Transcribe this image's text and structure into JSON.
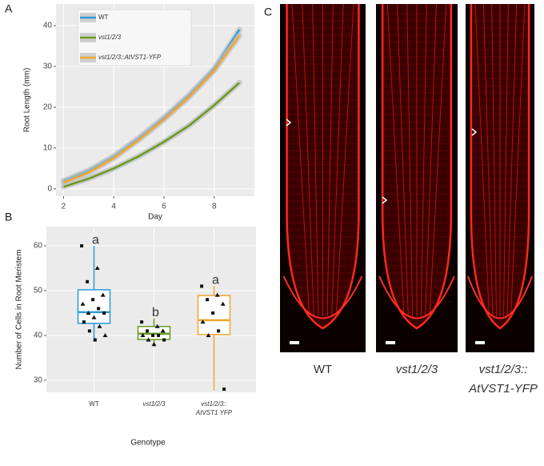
{
  "panels": [
    "A",
    "B",
    "C"
  ],
  "chart_data": [
    {
      "type": "line",
      "xlabel": "Day",
      "ylabel": "Root Length (mm)",
      "x": [
        2,
        3,
        4,
        5,
        6,
        7,
        8,
        9
      ],
      "xlim": [
        1.7,
        9.6
      ],
      "xticks": [
        2,
        4,
        6,
        8
      ],
      "ylim": [
        -1.8,
        45.3
      ],
      "yticks": [
        0,
        10,
        20,
        30,
        40
      ],
      "grid": true,
      "legend": "top-left",
      "series": [
        {
          "name": "WT",
          "color": "#2b9bd8",
          "values": [
            2,
            4.5,
            8,
            12.5,
            17.5,
            23,
            29.5,
            39
          ]
        },
        {
          "name": "vst1/2/3",
          "color": "#6b9a22",
          "values": [
            0.5,
            2.5,
            5,
            8,
            11.5,
            15.5,
            20.5,
            26
          ]
        },
        {
          "name": "vst1/2/3::AtVST1-YFP",
          "color": "#efa52e",
          "values": [
            1.5,
            4,
            7.5,
            12,
            17,
            22.5,
            29,
            37.5
          ]
        }
      ]
    },
    {
      "type": "box",
      "xlabel": "Genotype",
      "ylabel": "Number of Cells in Root Meristem",
      "categories": [
        [
          "WT"
        ],
        [
          "vst1/2/3"
        ],
        [
          "vst1/2/3::",
          "AtVST1 YFP"
        ]
      ],
      "ylim": [
        27.3,
        64.3
      ],
      "yticks": [
        30,
        40,
        50,
        60
      ],
      "grid": true,
      "boxes": [
        {
          "color": "#2b9bd8",
          "min": 38.6,
          "q1": 42.7,
          "median": 45.2,
          "q3": 50.2,
          "max": 60,
          "letter": "a",
          "points": [
            60,
            55,
            52,
            49,
            48,
            47,
            46,
            45,
            45,
            44,
            43,
            42,
            41,
            40,
            39
          ]
        },
        {
          "color": "#6b9a22",
          "min": 37.5,
          "q1": 39.1,
          "median": 40.4,
          "q3": 42,
          "max": 43.8,
          "letter": "b",
          "points": [
            43,
            42,
            41,
            41,
            40,
            40,
            40,
            39,
            39,
            38
          ]
        },
        {
          "color": "#efa52e",
          "min": 27.7,
          "q1": 40.2,
          "median": 43.4,
          "q3": 48.9,
          "max": 51,
          "letter": "a",
          "points": [
            51,
            49,
            48,
            47,
            45,
            43,
            41,
            40,
            28
          ]
        }
      ]
    }
  ],
  "micrographs": {
    "labels": [
      [
        "WT"
      ],
      [
        "vst1/2/3"
      ],
      [
        "vst1/2/3::",
        "AtVST1-YFP"
      ]
    ]
  }
}
